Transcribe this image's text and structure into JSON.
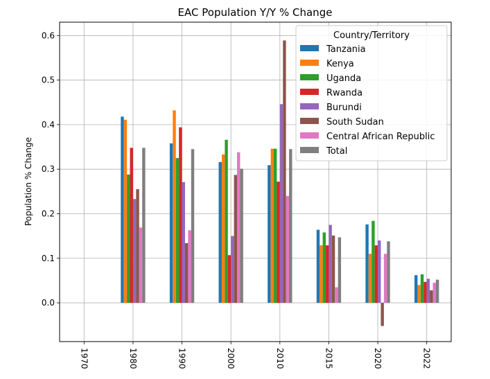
{
  "chart_data": {
    "type": "bar",
    "title": "EAC Population Y/Y % Change",
    "xlabel": "",
    "ylabel": "Population % Change",
    "categories": [
      "1970",
      "1980",
      "1990",
      "2000",
      "2010",
      "2015",
      "2020",
      "2022"
    ],
    "ylim": [
      -0.087,
      0.63
    ],
    "yticks": [
      0.0,
      0.1,
      0.2,
      0.3,
      0.4,
      0.5,
      0.6
    ],
    "ytick_labels": [
      "0.0",
      "0.1",
      "0.2",
      "0.3",
      "0.4",
      "0.5",
      "0.6"
    ],
    "grid": true,
    "legend": {
      "title": "Country/Territory",
      "placement": "top-right"
    },
    "series": [
      {
        "name": "Tanzania",
        "color": "#1f77b4",
        "values": [
          null,
          0.418,
          0.358,
          0.316,
          0.309,
          0.164,
          0.176,
          0.062
        ]
      },
      {
        "name": "Kenya",
        "color": "#ff7f0e",
        "values": [
          null,
          0.411,
          0.432,
          0.333,
          0.346,
          0.129,
          0.11,
          0.04
        ]
      },
      {
        "name": "Uganda",
        "color": "#2ca02c",
        "values": [
          null,
          0.288,
          0.325,
          0.366,
          0.346,
          0.158,
          0.184,
          0.064
        ]
      },
      {
        "name": "Rwanda",
        "color": "#d62728",
        "values": [
          null,
          0.348,
          0.394,
          0.107,
          0.272,
          0.129,
          0.129,
          0.047
        ]
      },
      {
        "name": "Burundi",
        "color": "#9467bd",
        "values": [
          null,
          0.233,
          0.271,
          0.15,
          0.446,
          0.175,
          0.14,
          0.054
        ]
      },
      {
        "name": "South Sudan",
        "color": "#8c564b",
        "values": [
          null,
          0.255,
          0.134,
          0.287,
          0.589,
          0.151,
          -0.052,
          0.028
        ]
      },
      {
        "name": "Central African Republic",
        "color": "#e377c2",
        "values": [
          null,
          0.169,
          0.163,
          0.338,
          0.24,
          0.035,
          0.11,
          0.045
        ]
      },
      {
        "name": "Total",
        "color": "#7f7f7f",
        "values": [
          null,
          0.348,
          0.345,
          0.301,
          0.345,
          0.147,
          0.138,
          0.052
        ]
      }
    ]
  }
}
